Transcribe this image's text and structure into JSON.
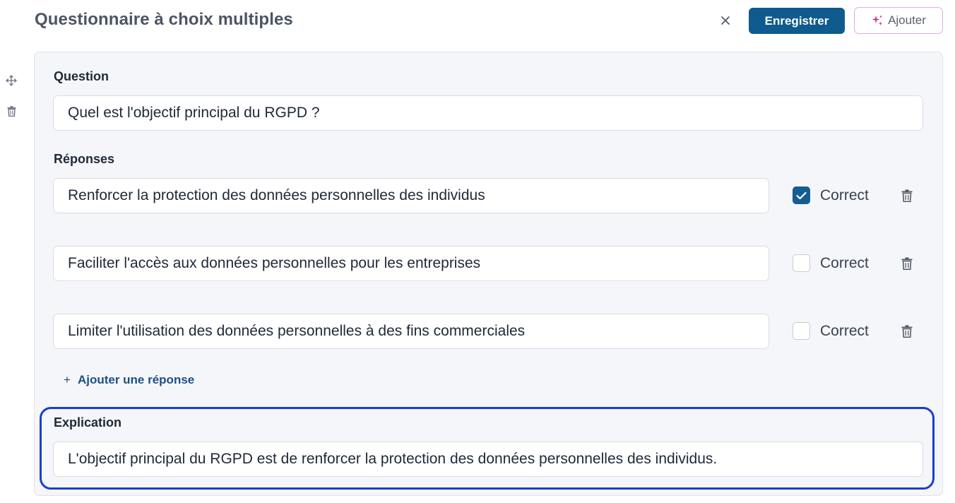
{
  "header": {
    "title": "Questionnaire à choix multiples",
    "close_symbol": "×",
    "save_label": "Enregistrer",
    "add_label": "Ajouter"
  },
  "question": {
    "label": "Question",
    "value": "Quel est l'objectif principal du RGPD ?"
  },
  "answers": {
    "label": "Réponses",
    "items": [
      {
        "text": "Renforcer la protection des données personnelles des individus",
        "correct": true,
        "correct_label": "Correct"
      },
      {
        "text": "Faciliter l'accès aux données personnelles pour les entreprises",
        "correct": false,
        "correct_label": "Correct"
      },
      {
        "text": "Limiter l'utilisation des données personnelles à des fins commerciales",
        "correct": false,
        "correct_label": "Correct"
      }
    ],
    "add_label": "Ajouter une réponse",
    "add_symbol": "+"
  },
  "explanation": {
    "label": "Explication",
    "value": "L'objectif principal du RGPD est de renforcer la protection des données personnelles des individus."
  },
  "icons": {
    "move": "move-icon",
    "delete": "trash-icon",
    "sparkle": "sparkle-icon",
    "check": "check-icon"
  },
  "colors": {
    "primary": "#0f5b8e",
    "checkbox_on": "#155d91",
    "add_border": "#e6a8e4",
    "sparkle": "#d03aa6",
    "highlight": "#1a3fd0",
    "link": "#1d4f82"
  }
}
